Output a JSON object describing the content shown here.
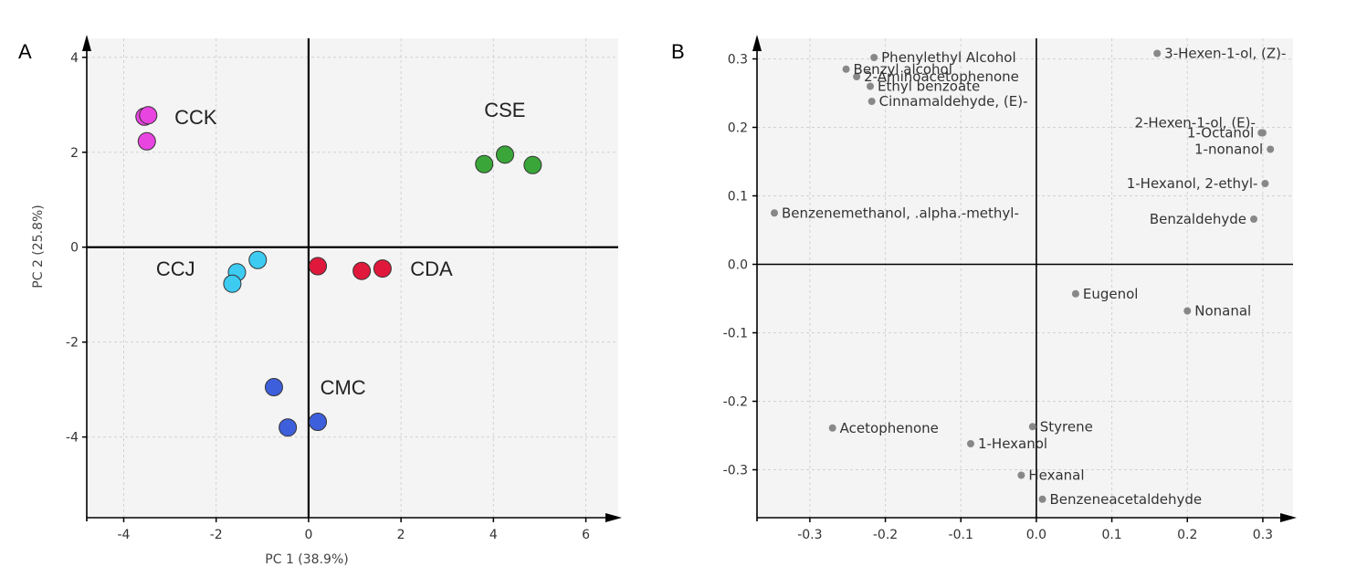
{
  "chart_data": [
    {
      "panel": "A",
      "type": "scatter",
      "xlabel": "PC 1 (38.9%)",
      "ylabel": "PC 2 (25.8%)",
      "xlim": [
        -4.8,
        6.7
      ],
      "ylim": [
        -5.7,
        4.4
      ],
      "xticks": [
        -4,
        -2,
        0,
        2,
        4,
        6
      ],
      "yticks": [
        -4,
        -2,
        0,
        2,
        4
      ],
      "xtick_labels": [
        "-4",
        "-2",
        "0",
        "2",
        "4",
        "6"
      ],
      "ytick_labels": [
        "-4",
        "-2",
        "0",
        "2",
        "4"
      ],
      "grid": true,
      "series": [
        {
          "name": "CCK",
          "color": "#e844e0",
          "points": [
            [
              -3.55,
              2.75
            ],
            [
              -3.47,
              2.78
            ],
            [
              -3.5,
              2.23
            ]
          ],
          "label_at": [
            -2.9,
            2.75
          ]
        },
        {
          "name": "CSE",
          "color": "#3aa63a",
          "points": [
            [
              3.8,
              1.75
            ],
            [
              4.25,
              1.95
            ],
            [
              4.85,
              1.73
            ]
          ],
          "label_at": [
            3.8,
            2.9
          ]
        },
        {
          "name": "CCJ",
          "color": "#3dcbf2",
          "points": [
            [
              -1.1,
              -0.27
            ],
            [
              -1.55,
              -0.53
            ],
            [
              -1.65,
              -0.77
            ]
          ],
          "label_at": [
            -3.3,
            -0.45
          ]
        },
        {
          "name": "CDA",
          "color": "#e0193c",
          "points": [
            [
              0.2,
              -0.4
            ],
            [
              1.15,
              -0.5
            ],
            [
              1.6,
              -0.45
            ]
          ],
          "label_at": [
            2.2,
            -0.45
          ]
        },
        {
          "name": "CMC",
          "color": "#3e5fdc",
          "points": [
            [
              -0.75,
              -2.95
            ],
            [
              -0.45,
              -3.8
            ],
            [
              0.2,
              -3.68
            ]
          ],
          "label_at": [
            0.25,
            -2.95
          ]
        }
      ]
    },
    {
      "panel": "B",
      "type": "scatter",
      "xlim": [
        -0.37,
        0.34
      ],
      "ylim": [
        -0.37,
        0.33
      ],
      "xticks": [
        -0.3,
        -0.2,
        -0.1,
        0.0,
        0.1,
        0.2,
        0.3
      ],
      "yticks": [
        -0.3,
        -0.2,
        -0.1,
        0.0,
        0.1,
        0.2,
        0.3
      ],
      "xtick_labels": [
        "-0.3",
        "-0.2",
        "-0.1",
        "0.0",
        "0.1",
        "0.2",
        "0.3"
      ],
      "ytick_labels": [
        "-0.3",
        "-0.2",
        "-0.1",
        "0.0",
        "0.1",
        "0.2",
        "0.3"
      ],
      "grid": true,
      "point_color": "#888888",
      "points": [
        {
          "name": "Phenylethyl Alcohol",
          "x": -0.215,
          "y": 0.302,
          "side": "right"
        },
        {
          "name": "Benzyl alcohol",
          "x": -0.252,
          "y": 0.285,
          "side": "right"
        },
        {
          "name": "2-Aminoacetophenone",
          "x": -0.238,
          "y": 0.274,
          "side": "right"
        },
        {
          "name": "Ethyl benzoate",
          "x": -0.22,
          "y": 0.26,
          "side": "right"
        },
        {
          "name": "Cinnamaldehyde, (E)-",
          "x": -0.218,
          "y": 0.238,
          "side": "right"
        },
        {
          "name": "3-Hexen-1-ol, (Z)-",
          "x": 0.16,
          "y": 0.308,
          "side": "right"
        },
        {
          "name": "2-Hexen-1-ol, (E)-",
          "x": 0.3,
          "y": 0.192,
          "side": "left-above"
        },
        {
          "name": "1-Octanol",
          "x": 0.298,
          "y": 0.192,
          "side": "left"
        },
        {
          "name": "1-nonanol",
          "x": 0.31,
          "y": 0.168,
          "side": "left"
        },
        {
          "name": "1-Hexanol, 2-ethyl-",
          "x": 0.303,
          "y": 0.118,
          "side": "left"
        },
        {
          "name": "Benzaldehyde",
          "x": 0.288,
          "y": 0.066,
          "side": "left"
        },
        {
          "name": "Benzenemethanol, .alpha.-methyl-",
          "x": -0.347,
          "y": 0.075,
          "side": "right"
        },
        {
          "name": "Eugenol",
          "x": 0.052,
          "y": -0.043,
          "side": "right"
        },
        {
          "name": "Nonanal",
          "x": 0.2,
          "y": -0.068,
          "side": "right"
        },
        {
          "name": "Acetophenone",
          "x": -0.27,
          "y": -0.239,
          "side": "right"
        },
        {
          "name": "Styrene",
          "x": -0.005,
          "y": -0.237,
          "side": "right"
        },
        {
          "name": "1-Hexanol",
          "x": -0.087,
          "y": -0.262,
          "side": "right"
        },
        {
          "name": "Hexanal",
          "x": -0.02,
          "y": -0.308,
          "side": "right"
        },
        {
          "name": "Benzeneacetaldehyde",
          "x": 0.008,
          "y": -0.343,
          "side": "right"
        }
      ]
    }
  ]
}
